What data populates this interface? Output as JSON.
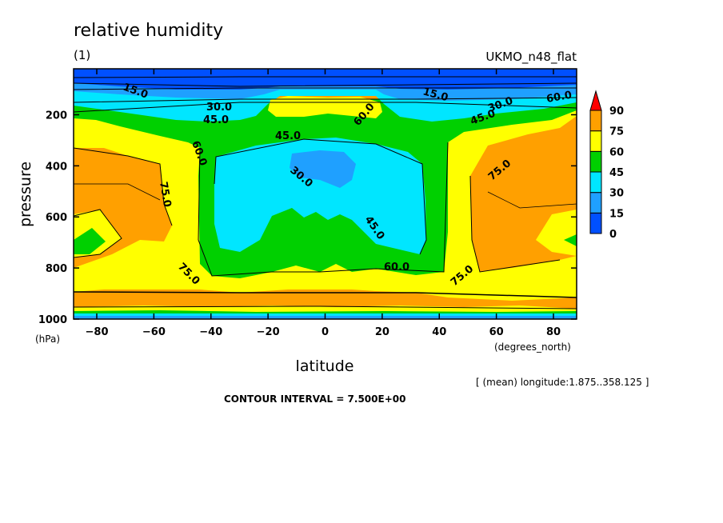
{
  "chart_data": {
    "type": "heatmap",
    "title": "relative humidity",
    "subtitle_left": "(1)",
    "subtitle_right": "UKMO_n48_flat",
    "xlabel": "latitude",
    "xunit": "(degrees_north)",
    "ylabel": "pressure",
    "yunit": "(hPa)",
    "xlim": [
      -88.125,
      88.125
    ],
    "ylim": [
      1000,
      20
    ],
    "x_ticks": [
      "-80",
      "-60",
      "-40",
      "-20",
      "0",
      "20",
      "40",
      "60",
      "80"
    ],
    "y_ticks": [
      "200",
      "400",
      "600",
      "800",
      "1000"
    ],
    "colorbar": {
      "levels": [
        "0",
        "15",
        "30",
        "45",
        "60",
        "75",
        "90"
      ],
      "colors": [
        "#0050ff",
        "#1fa0ff",
        "#00e6ff",
        "#00d000",
        "#ffff00",
        "#ffa000",
        "#ff0000"
      ]
    },
    "contour_labels": [
      "15.0",
      "15.0",
      "30.0",
      "30.0",
      "45.0",
      "45.0",
      "45.0",
      "45.0",
      "60.0",
      "60.0",
      "60.0",
      "60.0",
      "75.0",
      "75.0",
      "75.0",
      "75.0",
      "30.0"
    ],
    "contour_interval_text": "CONTOUR INTERVAL = 7.500E+00",
    "mean_note": "[ (mean) longitude:1.875..358.125 ]"
  }
}
